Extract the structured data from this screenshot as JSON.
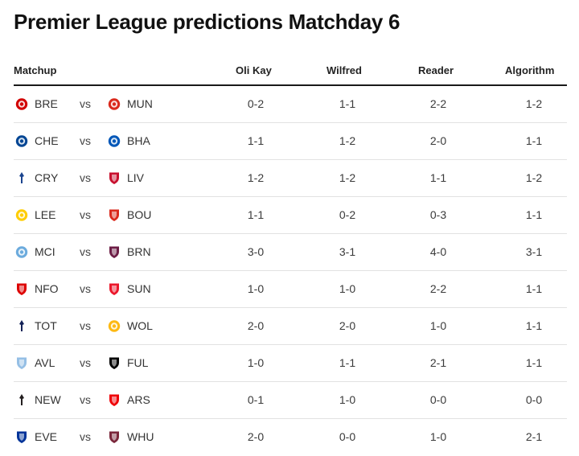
{
  "title": "Premier League predictions Matchday 6",
  "headers": {
    "matchup": "Matchup",
    "p1": "Oli Kay",
    "p2": "Wilfred",
    "p3": "Reader",
    "p4": "Algorithm"
  },
  "vs_label": "vs",
  "rows": [
    {
      "home": "BRE",
      "away": "MUN",
      "home_icon": "brentford-crest-icon",
      "away_icon": "manchester-united-crest-icon",
      "home_color": "#d20000",
      "away_color": "#da291c",
      "p1": "0-2",
      "p2": "1-1",
      "p3": "2-2",
      "p4": "1-2"
    },
    {
      "home": "CHE",
      "away": "BHA",
      "home_icon": "chelsea-crest-icon",
      "away_icon": "brighton-crest-icon",
      "home_color": "#034694",
      "away_color": "#0057b8",
      "p1": "1-1",
      "p2": "1-2",
      "p3": "2-0",
      "p4": "1-1"
    },
    {
      "home": "CRY",
      "away": "LIV",
      "home_icon": "crystal-palace-crest-icon",
      "away_icon": "liverpool-crest-icon",
      "home_color": "#1b458f",
      "away_color": "#c8102e",
      "p1": "1-2",
      "p2": "1-2",
      "p3": "1-1",
      "p4": "1-2"
    },
    {
      "home": "LEE",
      "away": "BOU",
      "home_icon": "leeds-crest-icon",
      "away_icon": "bournemouth-crest-icon",
      "home_color": "#ffcd00",
      "away_color": "#da291c",
      "p1": "1-1",
      "p2": "0-2",
      "p3": "0-3",
      "p4": "1-1"
    },
    {
      "home": "MCI",
      "away": "BRN",
      "home_icon": "manchester-city-crest-icon",
      "away_icon": "burnley-crest-icon",
      "home_color": "#6cabdd",
      "away_color": "#6c1d45",
      "p1": "3-0",
      "p2": "3-1",
      "p3": "4-0",
      "p4": "3-1"
    },
    {
      "home": "NFO",
      "away": "SUN",
      "home_icon": "nottingham-forest-crest-icon",
      "away_icon": "sunderland-crest-icon",
      "home_color": "#dd0000",
      "away_color": "#eb172b",
      "p1": "1-0",
      "p2": "1-0",
      "p3": "2-2",
      "p4": "1-1"
    },
    {
      "home": "TOT",
      "away": "WOL",
      "home_icon": "tottenham-crest-icon",
      "away_icon": "wolves-crest-icon",
      "home_color": "#132257",
      "away_color": "#fdb913",
      "p1": "2-0",
      "p2": "2-0",
      "p3": "1-0",
      "p4": "1-1"
    },
    {
      "home": "AVL",
      "away": "FUL",
      "home_icon": "aston-villa-crest-icon",
      "away_icon": "fulham-crest-icon",
      "home_color": "#95bfe5",
      "away_color": "#000000",
      "p1": "1-0",
      "p2": "1-1",
      "p3": "2-1",
      "p4": "1-1"
    },
    {
      "home": "NEW",
      "away": "ARS",
      "home_icon": "newcastle-crest-icon",
      "away_icon": "arsenal-crest-icon",
      "home_color": "#241f20",
      "away_color": "#ef0107",
      "p1": "0-1",
      "p2": "1-0",
      "p3": "0-0",
      "p4": "0-0"
    },
    {
      "home": "EVE",
      "away": "WHU",
      "home_icon": "everton-crest-icon",
      "away_icon": "west-ham-crest-icon",
      "home_color": "#003399",
      "away_color": "#7a263a",
      "p1": "2-0",
      "p2": "0-0",
      "p3": "1-0",
      "p4": "2-1"
    }
  ]
}
